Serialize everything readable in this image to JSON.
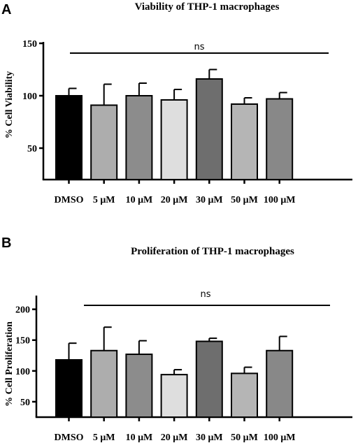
{
  "chart_data": [
    {
      "panel": "A",
      "type": "bar",
      "title": "Viability of THP-1 macrophages",
      "ylabel": "% Cell Viability",
      "xlabel": "",
      "categories": [
        "DMSO",
        "5 μM",
        "10 μM",
        "20 μM",
        "30 μM",
        "50 μM",
        "100 μM"
      ],
      "values": [
        100,
        91,
        100,
        96,
        116,
        92,
        97
      ],
      "errors": [
        7,
        20,
        12,
        10,
        9,
        6,
        6
      ],
      "colors": [
        "#000000",
        "#adadad",
        "#8c8c8c",
        "#dedede",
        "#6e6e6e",
        "#b5b5b5",
        "#888888"
      ],
      "ylim": [
        20,
        150
      ],
      "yticks": [
        50,
        100,
        150
      ],
      "significance": "ns",
      "grid": false
    },
    {
      "panel": "B",
      "type": "bar",
      "title": "Proliferation of THP-1 macrophages",
      "ylabel": "% Cell Proliferation",
      "xlabel": "",
      "categories": [
        "DMSO",
        "5 μM",
        "10 μM",
        "20 μM",
        "30 μM",
        "50 μM",
        "100 μM"
      ],
      "values": [
        118,
        133,
        127,
        94,
        148,
        96,
        133
      ],
      "errors": [
        27,
        38,
        22,
        8,
        5,
        10,
        23
      ],
      "colors": [
        "#000000",
        "#adadad",
        "#8c8c8c",
        "#dedede",
        "#6e6e6e",
        "#b5b5b5",
        "#888888"
      ],
      "ylim": [
        25,
        220
      ],
      "yticks": [
        50,
        100,
        150,
        200
      ],
      "significance": "ns",
      "grid": false
    }
  ]
}
